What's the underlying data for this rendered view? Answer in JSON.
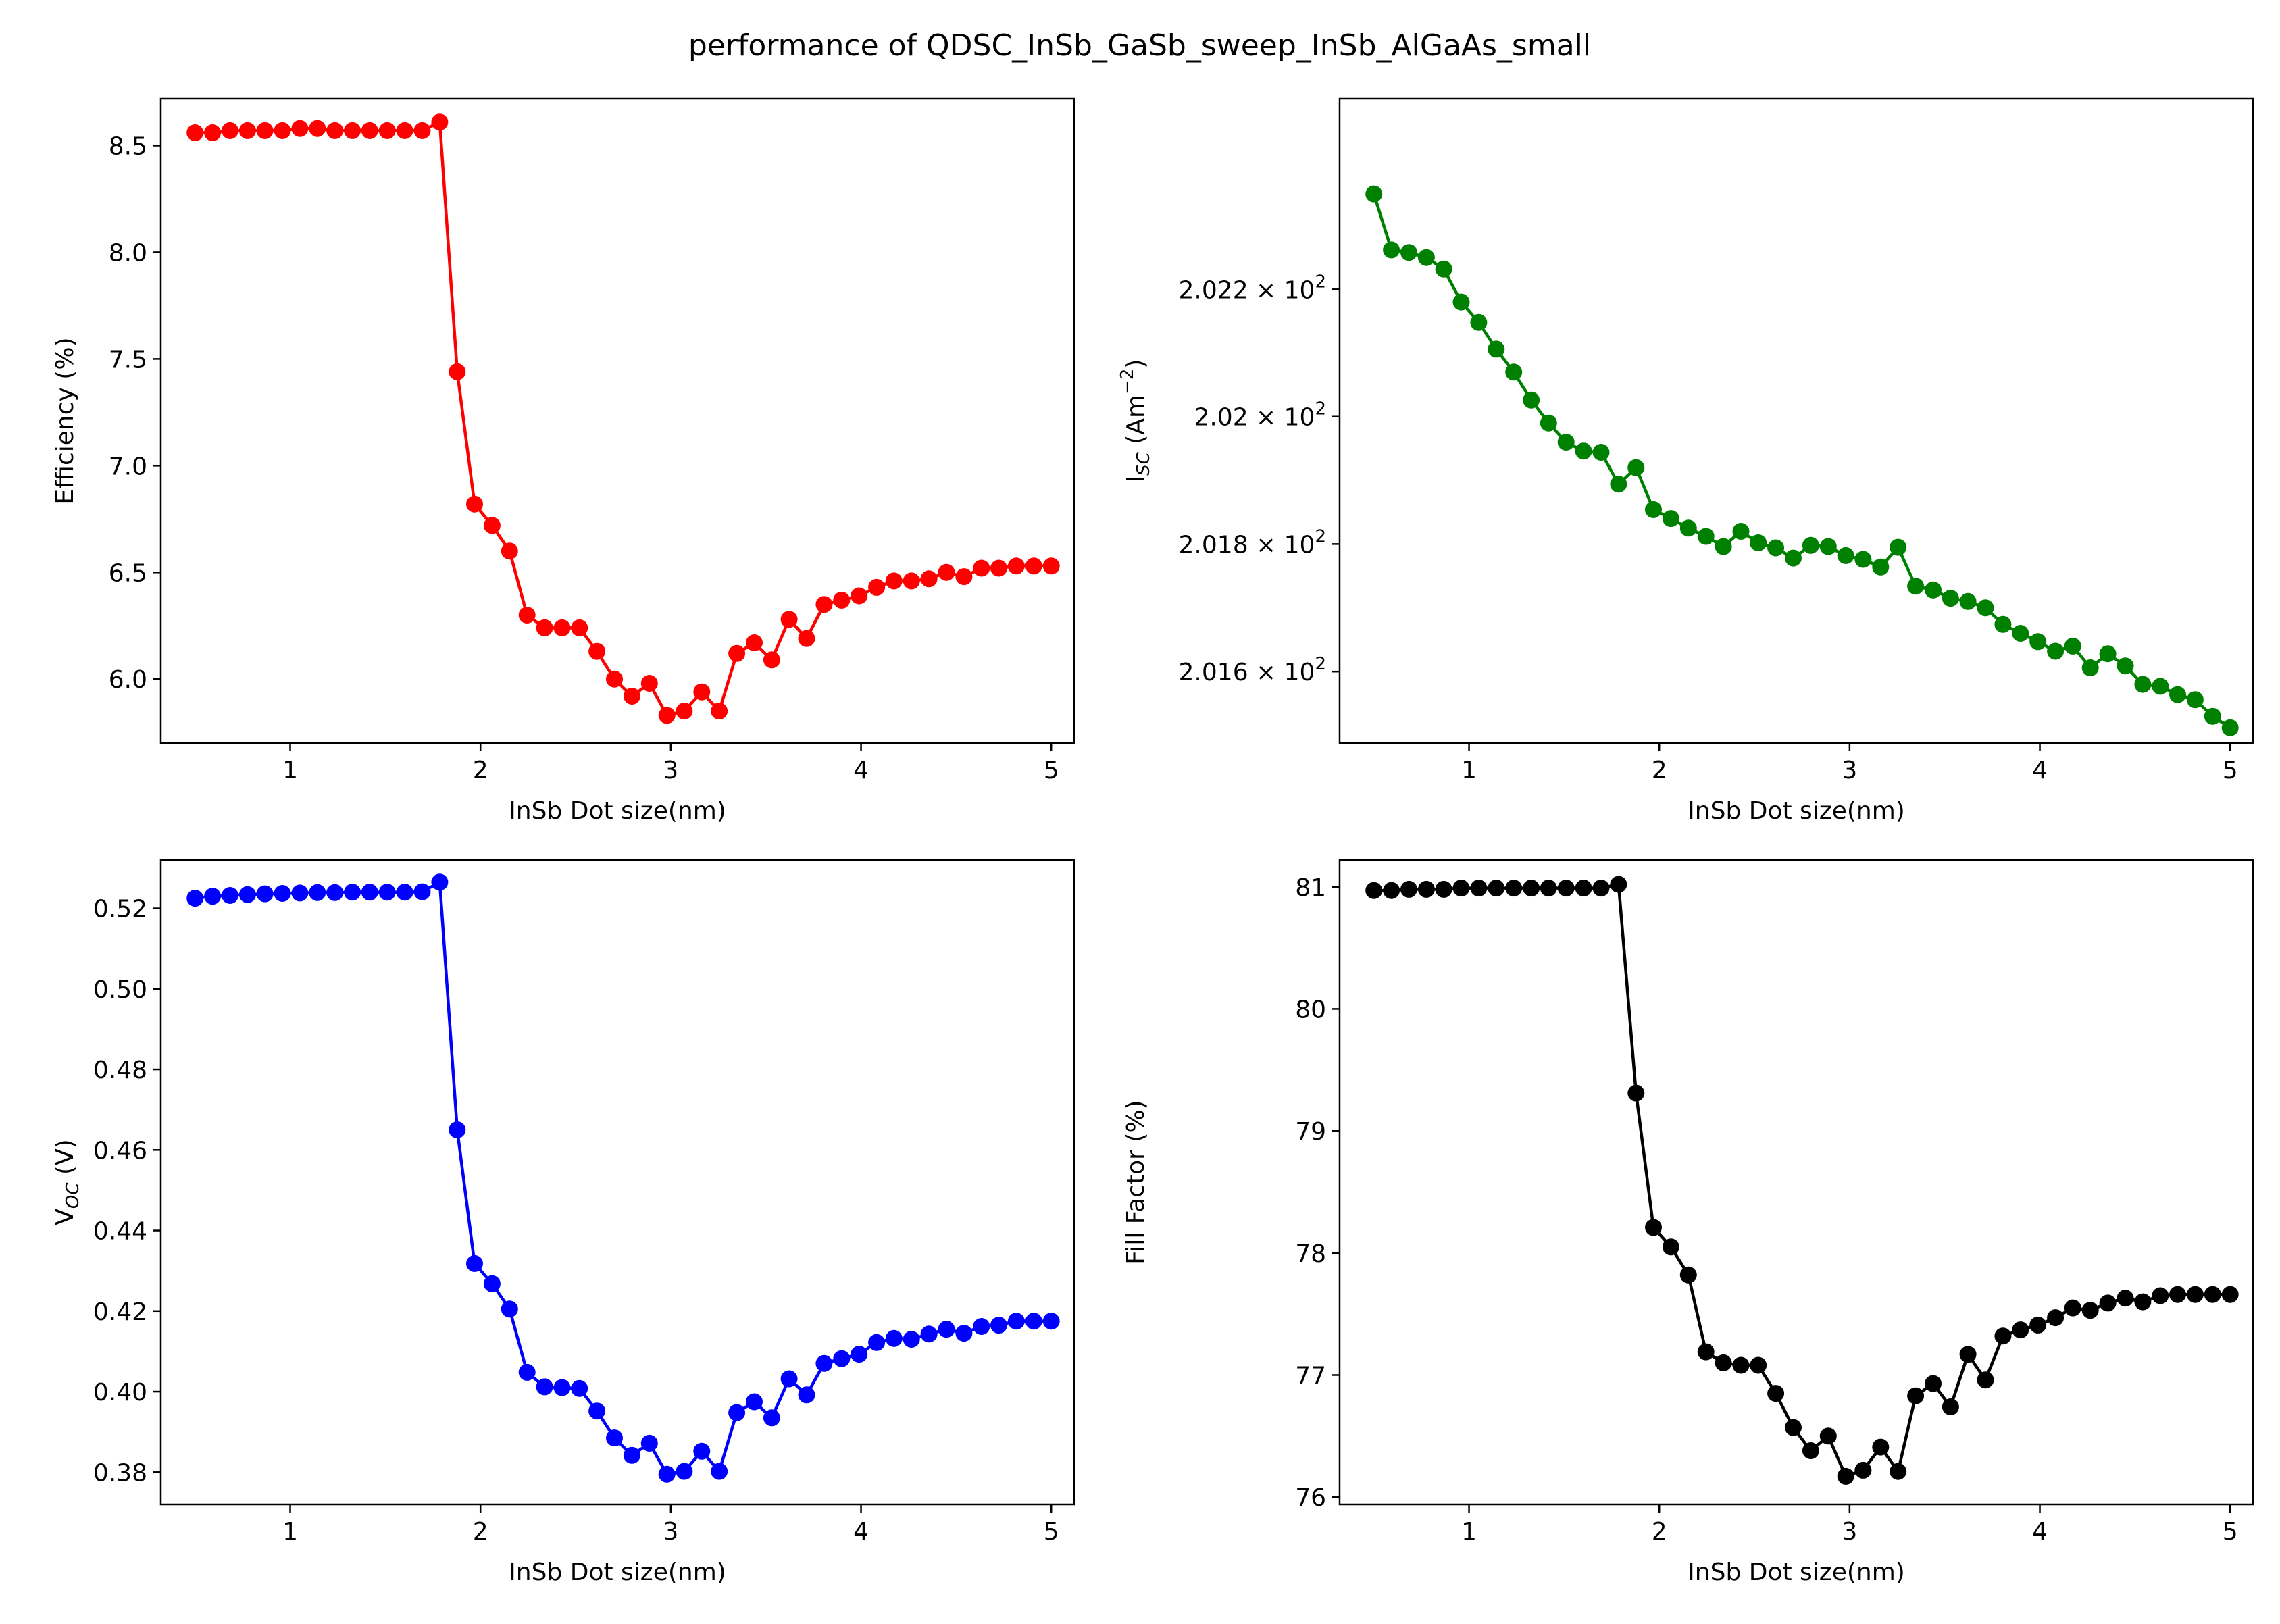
{
  "figure_title": "performance of QDSC_InSb_GaSb_sweep_InSb_AlGaAs_small",
  "chart_data": [
    {
      "type": "line",
      "xlabel": "InSb Dot size(nm)",
      "ylabel": "Efficiency (%)",
      "color": "#ff0000",
      "marker": "circle",
      "grid": false,
      "xlim": [
        0.32,
        5.12
      ],
      "ylim": [
        5.7,
        8.72
      ],
      "xticks": [
        1,
        2,
        3,
        4,
        5
      ],
      "xtick_labels": [
        "1",
        "2",
        "3",
        "4",
        "5"
      ],
      "yticks": [
        6.0,
        6.5,
        7.0,
        7.5,
        8.0,
        8.5
      ],
      "ytick_labels": [
        "6.0",
        "6.5",
        "7.0",
        "7.5",
        "8.0",
        "8.5"
      ],
      "x": [
        0.5,
        0.592,
        0.684,
        0.776,
        0.867,
        0.959,
        1.051,
        1.143,
        1.235,
        1.327,
        1.418,
        1.51,
        1.602,
        1.694,
        1.786,
        1.878,
        1.969,
        2.061,
        2.153,
        2.245,
        2.337,
        2.429,
        2.52,
        2.612,
        2.704,
        2.796,
        2.888,
        2.98,
        3.071,
        3.163,
        3.255,
        3.347,
        3.439,
        3.531,
        3.622,
        3.714,
        3.806,
        3.898,
        3.99,
        4.082,
        4.173,
        4.265,
        4.357,
        4.449,
        4.541,
        4.633,
        4.724,
        4.816,
        4.908,
        5.0
      ],
      "y": [
        8.56,
        8.56,
        8.57,
        8.57,
        8.57,
        8.57,
        8.58,
        8.58,
        8.57,
        8.57,
        8.57,
        8.57,
        8.57,
        8.57,
        8.61,
        7.44,
        6.82,
        6.72,
        6.6,
        6.3,
        6.24,
        6.24,
        6.24,
        6.13,
        6.0,
        5.92,
        5.98,
        5.83,
        5.85,
        5.94,
        5.85,
        6.12,
        6.17,
        6.09,
        6.28,
        6.19,
        6.35,
        6.37,
        6.39,
        6.43,
        6.46,
        6.46,
        6.47,
        6.5,
        6.48,
        6.52,
        6.52,
        6.53,
        6.53,
        6.53
      ]
    },
    {
      "type": "line",
      "xlabel": "InSb Dot size(nm)",
      "ylabel": "I_SC (Am^-2)",
      "ylabel_main": "I",
      "ylabel_sub": "SC",
      "ylabel_tail": " (Am",
      "ylabel_sup": "−2",
      "ylabel_close": ")",
      "color": "#008000",
      "marker": "circle",
      "grid": false,
      "yscale": "log",
      "xlim": [
        0.32,
        5.12
      ],
      "ylim": [
        201.488,
        202.5
      ],
      "xticks": [
        1,
        2,
        3,
        4,
        5
      ],
      "xtick_labels": [
        "1",
        "2",
        "3",
        "4",
        "5"
      ],
      "yticks": [
        201.6,
        201.8,
        202.0,
        202.2
      ],
      "ytick_mantissas": [
        "2.016",
        "2.018",
        "2.02",
        "2.022"
      ],
      "ytick_base": "× 10",
      "ytick_exponent": "2",
      "x": [
        0.5,
        0.592,
        0.684,
        0.776,
        0.867,
        0.959,
        1.051,
        1.143,
        1.235,
        1.327,
        1.418,
        1.51,
        1.602,
        1.694,
        1.786,
        1.878,
        1.969,
        2.061,
        2.153,
        2.245,
        2.337,
        2.429,
        2.52,
        2.612,
        2.704,
        2.796,
        2.888,
        2.98,
        3.071,
        3.163,
        3.255,
        3.347,
        3.439,
        3.531,
        3.622,
        3.714,
        3.806,
        3.898,
        3.99,
        4.082,
        4.173,
        4.265,
        4.357,
        4.449,
        4.541,
        4.633,
        4.724,
        4.816,
        4.908,
        5.0
      ],
      "y": [
        202.35,
        202.262,
        202.258,
        202.25,
        202.232,
        202.18,
        202.148,
        202.106,
        202.07,
        202.026,
        201.99,
        201.96,
        201.946,
        201.944,
        201.894,
        201.92,
        201.854,
        201.84,
        201.825,
        201.812,
        201.796,
        201.82,
        201.802,
        201.794,
        201.778,
        201.798,
        201.796,
        201.782,
        201.776,
        201.764,
        201.795,
        201.734,
        201.728,
        201.715,
        201.71,
        201.7,
        201.674,
        201.66,
        201.647,
        201.632,
        201.64,
        201.606,
        201.628,
        201.609,
        201.58,
        201.577,
        201.564,
        201.556,
        201.53,
        201.512
      ]
    },
    {
      "type": "line",
      "xlabel": "InSb Dot size(nm)",
      "ylabel": "V_OC (V)",
      "ylabel_main": "V",
      "ylabel_sub": "OC",
      "ylabel_tail": " (V)",
      "color": "#0000ff",
      "marker": "circle",
      "grid": false,
      "xlim": [
        0.32,
        5.12
      ],
      "ylim": [
        0.372,
        0.532
      ],
      "xticks": [
        1,
        2,
        3,
        4,
        5
      ],
      "xtick_labels": [
        "1",
        "2",
        "3",
        "4",
        "5"
      ],
      "yticks": [
        0.38,
        0.4,
        0.42,
        0.44,
        0.46,
        0.48,
        0.5,
        0.52
      ],
      "ytick_labels": [
        "0.38",
        "0.40",
        "0.42",
        "0.44",
        "0.46",
        "0.48",
        "0.50",
        "0.52"
      ],
      "x": [
        0.5,
        0.592,
        0.684,
        0.776,
        0.867,
        0.959,
        1.051,
        1.143,
        1.235,
        1.327,
        1.418,
        1.51,
        1.602,
        1.694,
        1.786,
        1.878,
        1.969,
        2.061,
        2.153,
        2.245,
        2.337,
        2.429,
        2.52,
        2.612,
        2.704,
        2.796,
        2.888,
        2.98,
        3.071,
        3.163,
        3.255,
        3.347,
        3.439,
        3.531,
        3.622,
        3.714,
        3.806,
        3.898,
        3.99,
        4.082,
        4.173,
        4.265,
        4.357,
        4.449,
        4.541,
        4.633,
        4.724,
        4.816,
        4.908,
        5.0
      ],
      "y": [
        0.5225,
        0.523,
        0.5232,
        0.5234,
        0.5236,
        0.5237,
        0.5238,
        0.5239,
        0.5239,
        0.524,
        0.524,
        0.524,
        0.524,
        0.5241,
        0.5265,
        0.465,
        0.4318,
        0.4268,
        0.4205,
        0.4048,
        0.4012,
        0.401,
        0.4008,
        0.3952,
        0.3885,
        0.3842,
        0.3872,
        0.3795,
        0.3802,
        0.3852,
        0.3802,
        0.3948,
        0.3975,
        0.3935,
        0.4032,
        0.3992,
        0.407,
        0.4082,
        0.4093,
        0.4122,
        0.4132,
        0.413,
        0.4143,
        0.4155,
        0.4145,
        0.4162,
        0.4165,
        0.4175,
        0.4175,
        0.4175
      ]
    },
    {
      "type": "line",
      "xlabel": "InSb Dot size(nm)",
      "ylabel": "Fill Factor (%)",
      "color": "#000000",
      "marker": "circle",
      "grid": false,
      "xlim": [
        0.32,
        5.12
      ],
      "ylim": [
        75.94,
        81.22
      ],
      "xticks": [
        1,
        2,
        3,
        4,
        5
      ],
      "xtick_labels": [
        "1",
        "2",
        "3",
        "4",
        "5"
      ],
      "yticks": [
        76,
        77,
        78,
        79,
        80,
        81
      ],
      "ytick_labels": [
        "76",
        "77",
        "78",
        "79",
        "80",
        "81"
      ],
      "x": [
        0.5,
        0.592,
        0.684,
        0.776,
        0.867,
        0.959,
        1.051,
        1.143,
        1.235,
        1.327,
        1.418,
        1.51,
        1.602,
        1.694,
        1.786,
        1.878,
        1.969,
        2.061,
        2.153,
        2.245,
        2.337,
        2.429,
        2.52,
        2.612,
        2.704,
        2.796,
        2.888,
        2.98,
        3.071,
        3.163,
        3.255,
        3.347,
        3.439,
        3.531,
        3.622,
        3.714,
        3.806,
        3.898,
        3.99,
        4.082,
        4.173,
        4.265,
        4.357,
        4.449,
        4.541,
        4.633,
        4.724,
        4.816,
        4.908,
        5.0
      ],
      "y": [
        80.97,
        80.97,
        80.98,
        80.98,
        80.98,
        80.99,
        80.99,
        80.99,
        80.99,
        80.99,
        80.99,
        80.99,
        80.99,
        80.99,
        81.02,
        79.31,
        78.21,
        78.05,
        77.82,
        77.19,
        77.1,
        77.08,
        77.08,
        76.85,
        76.57,
        76.38,
        76.5,
        76.17,
        76.22,
        76.41,
        76.21,
        76.83,
        76.93,
        76.74,
        77.17,
        76.96,
        77.32,
        77.37,
        77.41,
        77.47,
        77.55,
        77.53,
        77.59,
        77.63,
        77.6,
        77.65,
        77.66,
        77.66,
        77.66,
        77.66
      ]
    }
  ]
}
